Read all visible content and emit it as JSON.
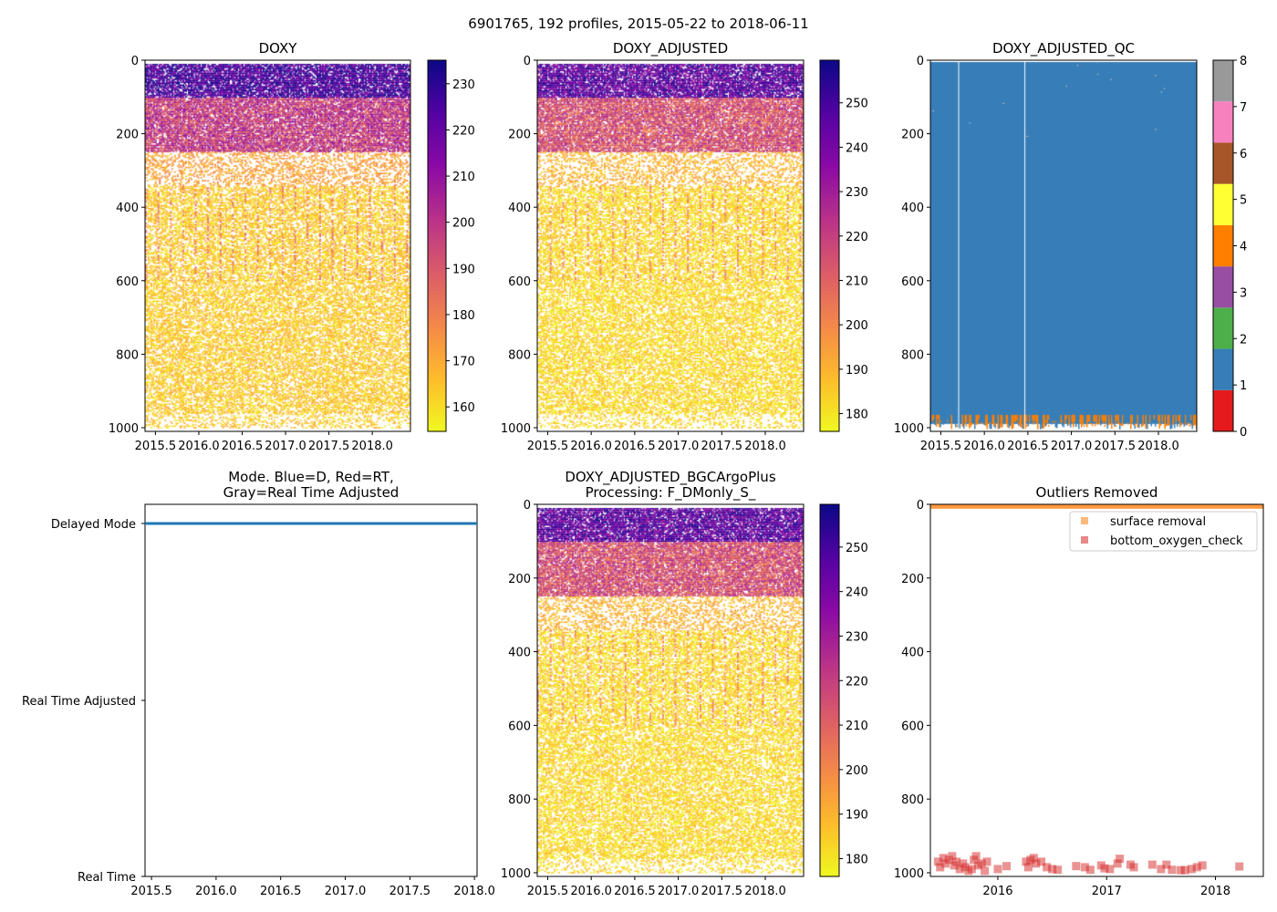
{
  "suptitle": "6901765, 192 profiles, 2015-05-22 to 2018-06-11",
  "colors": {
    "qc_blue": "#377eb8",
    "mode_blue": "#1f77b4",
    "surface_orange": "#ff7f0e",
    "bottom_red": "#d62728"
  },
  "chart_data": [
    {
      "id": "doxy",
      "type": "heatmap",
      "title": "DOXY",
      "xlim": [
        2015.38,
        2018.44
      ],
      "ylim": [
        1010,
        0
      ],
      "xticks": [
        "2015.5",
        "2016.0",
        "2016.5",
        "2017.0",
        "2017.5",
        "2018.0"
      ],
      "xtick_values": [
        2015.5,
        2016.0,
        2016.5,
        2017.0,
        2017.5,
        2018.0
      ],
      "yticks": [
        0,
        200,
        400,
        600,
        800,
        1000
      ],
      "colormap": "plasma_r",
      "colorbar": {
        "range": [
          154.7,
          235.1
        ],
        "ticks": [
          160,
          170,
          180,
          190,
          200,
          210,
          220,
          230
        ]
      },
      "depth_bands": [
        {
          "depth": [
            0,
            100
          ],
          "value": 225
        },
        {
          "depth": [
            100,
            250
          ],
          "value": 198
        },
        {
          "depth": [
            250,
            340
          ],
          "value": 172
        },
        {
          "depth": [
            340,
            1000
          ],
          "value": 164
        }
      ]
    },
    {
      "id": "doxy_adjusted",
      "type": "heatmap",
      "title": "DOXY_ADJUSTED",
      "xlim": [
        2015.38,
        2018.44
      ],
      "ylim": [
        1010,
        0
      ],
      "xticks": [
        "2015.5",
        "2016.0",
        "2016.5",
        "2017.0",
        "2017.5",
        "2018.0"
      ],
      "xtick_values": [
        2015.5,
        2016.0,
        2016.5,
        2017.0,
        2017.5,
        2018.0
      ],
      "yticks": [
        0,
        200,
        400,
        600,
        800,
        1000
      ],
      "colormap": "plasma_r",
      "colorbar": {
        "range": [
          176,
          259.6
        ],
        "ticks": [
          180,
          190,
          200,
          210,
          220,
          230,
          240,
          250
        ]
      },
      "depth_bands": [
        {
          "depth": [
            0,
            100
          ],
          "value": 245
        },
        {
          "depth": [
            100,
            250
          ],
          "value": 215
        },
        {
          "depth": [
            250,
            340
          ],
          "value": 190
        },
        {
          "depth": [
            340,
            1000
          ],
          "value": 183
        }
      ]
    },
    {
      "id": "doxy_adjusted_qc",
      "type": "heatmap",
      "title": "DOXY_ADJUSTED_QC",
      "xlim": [
        2015.38,
        2018.44
      ],
      "ylim": [
        1010,
        0
      ],
      "xticks": [
        "2015.5",
        "2016.0",
        "2016.5",
        "2017.0",
        "2017.5",
        "2018.0"
      ],
      "xtick_values": [
        2015.5,
        2016.0,
        2016.5,
        2017.0,
        2017.5,
        2018.0
      ],
      "yticks": [
        0,
        200,
        400,
        600,
        800,
        1000
      ],
      "colorbar": {
        "range": [
          0,
          8
        ],
        "ticks": [
          0,
          1,
          2,
          3,
          4,
          5,
          6,
          7,
          8
        ],
        "colors": [
          "#e41a1c",
          "#377eb8",
          "#4daf4a",
          "#984ea3",
          "#ff7f00",
          "#ffff33",
          "#a65628",
          "#f781bf",
          "#999999"
        ]
      },
      "dominant_flag": 1,
      "bottom_flag": 4
    },
    {
      "id": "mode",
      "type": "line",
      "title": "Mode. Blue=D, Red=RT,\nGray=Real Time Adjusted",
      "xlim": [
        2015.45,
        2018.02
      ],
      "xticks": [
        "2015.5",
        "2016.0",
        "2016.5",
        "2017.0",
        "2017.5",
        "2018.0"
      ],
      "xtick_values": [
        2015.5,
        2016.0,
        2016.5,
        2017.0,
        2017.5,
        2018.0
      ],
      "ycategories": [
        "Real Time",
        "Real Time Adjusted",
        "Delayed Mode"
      ],
      "series": [
        {
          "name": "D",
          "x": [
            2015.45,
            2018.02
          ],
          "y": [
            "Delayed Mode",
            "Delayed Mode"
          ]
        }
      ]
    },
    {
      "id": "bgcargoplus",
      "type": "heatmap",
      "title": "DOXY_ADJUSTED_BGCArgoPlus\nProcessing: F_DMonly_S_",
      "xlim": [
        2015.38,
        2018.44
      ],
      "ylim": [
        1010,
        0
      ],
      "xticks": [
        "2015.5",
        "2016.0",
        "2016.5",
        "2017.0",
        "2017.5",
        "2018.0"
      ],
      "xtick_values": [
        2015.5,
        2016.0,
        2016.5,
        2017.0,
        2017.5,
        2018.0
      ],
      "yticks": [
        0,
        200,
        400,
        600,
        800,
        1000
      ],
      "colormap": "plasma_r",
      "colorbar": {
        "range": [
          176,
          259.6
        ],
        "ticks": [
          180,
          190,
          200,
          210,
          220,
          230,
          240,
          250
        ]
      },
      "depth_bands": [
        {
          "depth": [
            0,
            100
          ],
          "value": 245
        },
        {
          "depth": [
            100,
            250
          ],
          "value": 215
        },
        {
          "depth": [
            250,
            340
          ],
          "value": 190
        },
        {
          "depth": [
            340,
            1000
          ],
          "value": 183
        }
      ]
    },
    {
      "id": "outliers",
      "type": "scatter",
      "title": "Outliers Removed",
      "xlim": [
        2015.38,
        2018.44
      ],
      "ylim": [
        1010,
        0
      ],
      "xticks": [
        "2016",
        "2017",
        "2018"
      ],
      "xtick_values": [
        2016,
        2017,
        2018
      ],
      "yticks": [
        0,
        200,
        400,
        600,
        800,
        1000
      ],
      "legend": {
        "placement": "top-right",
        "entries": [
          "surface removal",
          "bottom_oxygen_check"
        ]
      },
      "series": [
        {
          "name": "surface removal",
          "depth_range": [
            0,
            12
          ],
          "x_range": [
            2015.38,
            2018.44
          ]
        },
        {
          "name": "bottom_oxygen_check",
          "x": [
            2015.45,
            2015.47,
            2015.5,
            2015.52,
            2015.55,
            2015.58,
            2015.6,
            2015.62,
            2015.65,
            2015.68,
            2015.7,
            2015.73,
            2015.76,
            2015.78,
            2015.8,
            2015.82,
            2015.85,
            2015.88,
            2015.9,
            2016.0,
            2016.08,
            2016.26,
            2016.28,
            2016.3,
            2016.33,
            2016.35,
            2016.4,
            2016.45,
            2016.5,
            2016.55,
            2016.72,
            2016.8,
            2016.85,
            2016.95,
            2016.98,
            2017.03,
            2017.1,
            2017.12,
            2017.22,
            2017.25,
            2017.42,
            2017.5,
            2017.55,
            2017.6,
            2017.68,
            2017.72,
            2017.78,
            2017.83,
            2017.88,
            2018.22
          ],
          "y": [
            970,
            985,
            960,
            975,
            965,
            955,
            980,
            970,
            990,
            975,
            985,
            995,
            990,
            965,
            955,
            980,
            975,
            995,
            970,
            990,
            982,
            970,
            985,
            965,
            960,
            975,
            970,
            985,
            990,
            992,
            982,
            985,
            992,
            980,
            988,
            990,
            975,
            962,
            978,
            985,
            978,
            990,
            978,
            992,
            993,
            993,
            990,
            985,
            980,
            983
          ]
        }
      ]
    }
  ]
}
